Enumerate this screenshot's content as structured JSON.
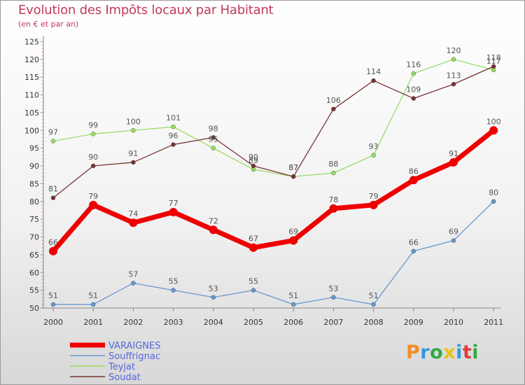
{
  "chart_data": {
    "type": "line",
    "title": "Evolution des Impôts locaux par Habitant",
    "subtitle": "(en € et par an)",
    "x": [
      "2000",
      "2001",
      "2002",
      "2003",
      "2004",
      "2005",
      "2006",
      "2007",
      "2008",
      "2009",
      "2010",
      "2011"
    ],
    "ylim": [
      50,
      125
    ],
    "yticks": [
      50,
      55,
      60,
      65,
      70,
      75,
      80,
      85,
      90,
      95,
      100,
      105,
      110,
      115,
      120,
      125
    ],
    "grid": false,
    "legend_position": "bottom-left",
    "series": [
      {
        "name": "VARAIGNES",
        "color": "#ee0000",
        "values": [
          66,
          79,
          74,
          77,
          72,
          67,
          69,
          78,
          79,
          86,
          91,
          100
        ]
      },
      {
        "name": "Souffrignac",
        "color": "#6699cc",
        "values": [
          51,
          51,
          57,
          55,
          53,
          55,
          51,
          53,
          51,
          66,
          69,
          80
        ]
      },
      {
        "name": "Teyjat",
        "color": "#99dd66",
        "values": [
          97,
          99,
          100,
          101,
          95,
          89,
          87,
          88,
          93,
          116,
          120,
          117
        ]
      },
      {
        "name": "Soudat",
        "color": "#773333",
        "values": [
          81,
          90,
          91,
          96,
          98,
          90,
          87,
          106,
          114,
          109,
          113,
          118
        ]
      }
    ]
  },
  "logo": {
    "letters": [
      "P",
      "r",
      "o",
      "x",
      "i",
      "t",
      "i"
    ],
    "colors": [
      "#f28c28",
      "#3399dd",
      "#33aa44",
      "#e6c21a",
      "#3399dd",
      "#e03c3c",
      "#33aa44"
    ]
  },
  "colors": {
    "title": "#c0395a",
    "axis": "#888888",
    "label": "#555555"
  }
}
